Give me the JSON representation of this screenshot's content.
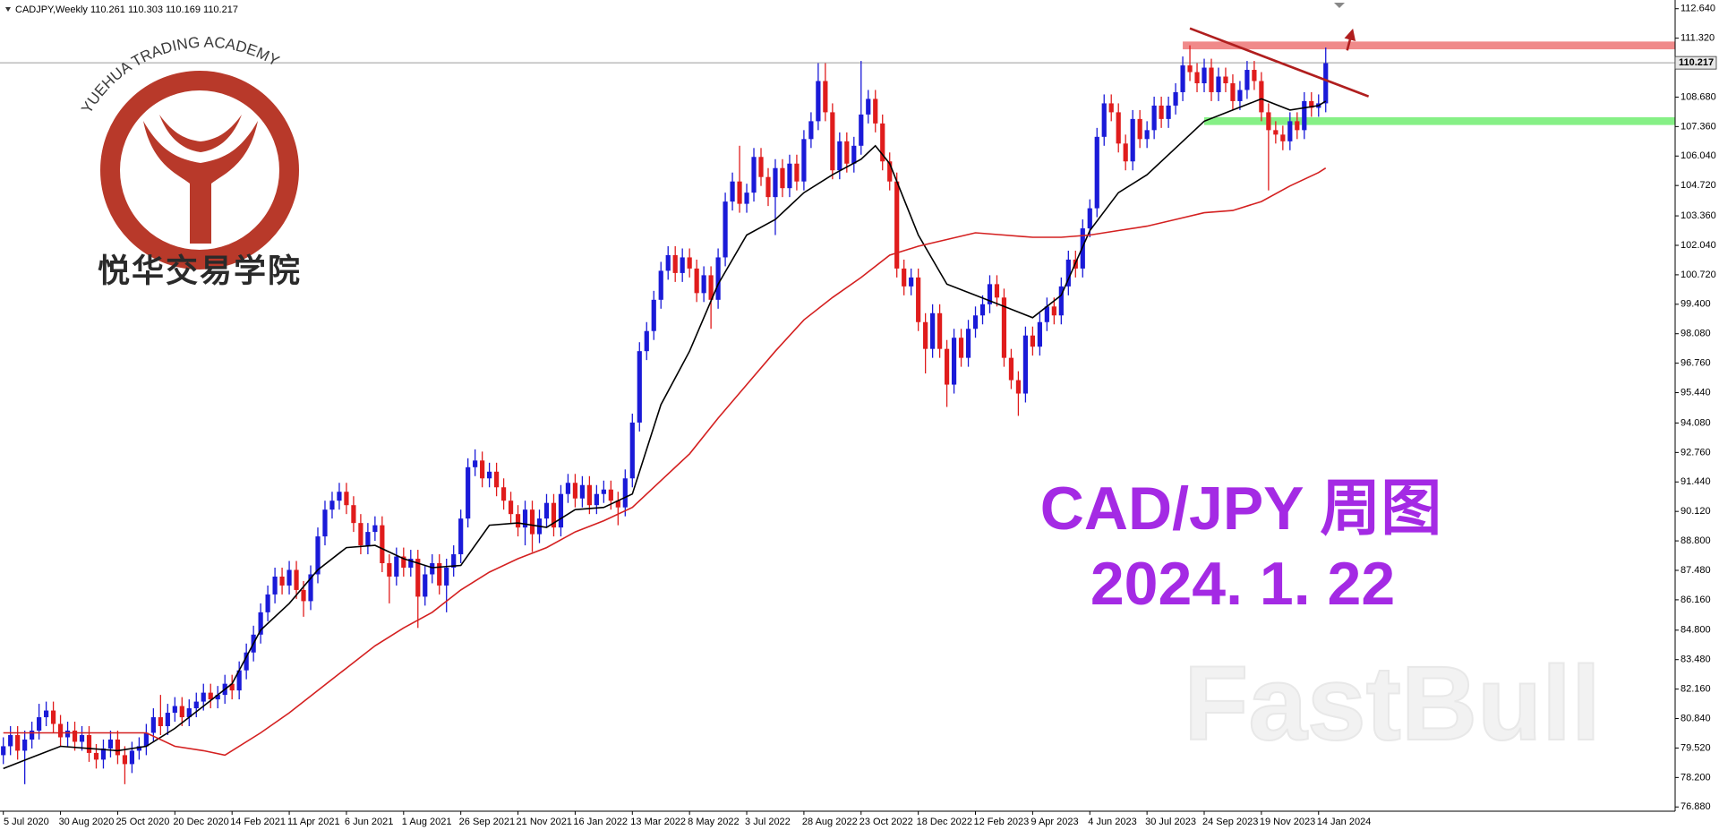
{
  "chart_data": {
    "type": "candlestick",
    "title": "CADJPY,Weekly",
    "ohlc": [
      110.261,
      110.303,
      110.169,
      110.217
    ],
    "up_color": "#1a1ad8",
    "down_color": "#e01c1c",
    "grid": false,
    "ylim": [
      76.69,
      113.03
    ],
    "yticks": [
      {
        "value": 112.64,
        "label": "112.640"
      },
      {
        "value": 111.32,
        "label": "111.320"
      },
      {
        "value": 108.68,
        "label": "108.680"
      },
      {
        "value": 107.36,
        "label": "107.360"
      },
      {
        "value": 106.04,
        "label": "106.040"
      },
      {
        "value": 104.72,
        "label": "104.720"
      },
      {
        "value": 103.36,
        "label": "103.360"
      },
      {
        "value": 102.04,
        "label": "102.040"
      },
      {
        "value": 100.72,
        "label": "100.720"
      },
      {
        "value": 99.4,
        "label": "99.400"
      },
      {
        "value": 98.08,
        "label": "98.080"
      },
      {
        "value": 96.76,
        "label": "96.760"
      },
      {
        "value": 95.44,
        "label": "95.440"
      },
      {
        "value": 94.08,
        "label": "94.080"
      },
      {
        "value": 92.76,
        "label": "92.760"
      },
      {
        "value": 91.44,
        "label": "91.440"
      },
      {
        "value": 90.12,
        "label": "90.120"
      },
      {
        "value": 88.8,
        "label": "88.800"
      },
      {
        "value": 87.48,
        "label": "87.480"
      },
      {
        "value": 86.16,
        "label": "86.160"
      },
      {
        "value": 84.8,
        "label": "84.800"
      },
      {
        "value": 83.48,
        "label": "83.480"
      },
      {
        "value": 82.16,
        "label": "82.160"
      },
      {
        "value": 80.84,
        "label": "80.840"
      },
      {
        "value": 79.52,
        "label": "79.520"
      },
      {
        "value": 78.2,
        "label": "78.200"
      },
      {
        "value": 76.88,
        "label": "76.880"
      }
    ],
    "categories": [
      "5 Jul 2020",
      null,
      null,
      null,
      null,
      null,
      null,
      null,
      "30 Aug 2020",
      null,
      null,
      null,
      null,
      null,
      null,
      null,
      "25 Oct 2020",
      null,
      null,
      null,
      null,
      null,
      null,
      null,
      "20 Dec 2020",
      null,
      null,
      null,
      null,
      null,
      null,
      null,
      "14 Feb 2021",
      null,
      null,
      null,
      null,
      null,
      null,
      null,
      "11 Apr 2021",
      null,
      null,
      null,
      null,
      null,
      null,
      null,
      "6 Jun 2021",
      null,
      null,
      null,
      null,
      null,
      null,
      null,
      "1 Aug 2021",
      null,
      null,
      null,
      null,
      null,
      null,
      null,
      "26 Sep 2021",
      null,
      null,
      null,
      null,
      null,
      null,
      null,
      "21 Nov 2021",
      null,
      null,
      null,
      null,
      null,
      null,
      null,
      "16 Jan 2022",
      null,
      null,
      null,
      null,
      null,
      null,
      null,
      "13 Mar 2022",
      null,
      null,
      null,
      null,
      null,
      null,
      null,
      "8 May 2022",
      null,
      null,
      null,
      null,
      null,
      null,
      null,
      "3 Jul 2022",
      null,
      null,
      null,
      null,
      null,
      null,
      null,
      "28 Aug 2022",
      null,
      null,
      null,
      null,
      null,
      null,
      null,
      "23 Oct 2022",
      null,
      null,
      null,
      null,
      null,
      null,
      null,
      "18 Dec 2022",
      null,
      null,
      null,
      null,
      null,
      null,
      null,
      "12 Feb 2023",
      null,
      null,
      null,
      null,
      null,
      null,
      null,
      "9 Apr 2023",
      null,
      null,
      null,
      null,
      null,
      null,
      null,
      "4 Jun 2023",
      null,
      null,
      null,
      null,
      null,
      null,
      null,
      "30 Jul 2023",
      null,
      null,
      null,
      null,
      null,
      null,
      null,
      "24 Sep 2023",
      null,
      null,
      null,
      null,
      null,
      null,
      null,
      "19 Nov 2023",
      null,
      null,
      null,
      null,
      null,
      null,
      null,
      "14 Jan 2024",
      null
    ],
    "open": [
      79.2,
      79.6,
      80.1,
      79.4,
      79.9,
      80.3,
      80.9,
      81.2,
      80.6,
      80.0,
      80.3,
      79.8,
      80.1,
      79.3,
      79.0,
      79.5,
      79.9,
      79.2,
      78.8,
      79.4,
      79.6,
      80.2,
      80.9,
      80.5,
      81.1,
      81.4,
      80.9,
      81.3,
      81.6,
      82.0,
      81.7,
      81.9,
      82.4,
      82.1,
      83.0,
      83.8,
      84.6,
      85.6,
      86.4,
      87.2,
      86.8,
      87.5,
      86.6,
      86.1,
      87.3,
      89.0,
      90.2,
      90.6,
      91.0,
      90.4,
      89.6,
      88.6,
      89.2,
      89.5,
      87.8,
      87.2,
      88.1,
      87.6,
      88.0,
      86.3,
      87.3,
      87.8,
      86.8,
      87.6,
      88.2,
      89.8,
      92.1,
      92.4,
      91.6,
      91.9,
      91.2,
      90.6,
      90.0,
      89.4,
      90.2,
      89.1,
      89.8,
      90.5,
      89.4,
      90.9,
      91.4,
      90.7,
      91.3,
      90.4,
      90.9,
      91.1,
      90.6,
      90.3,
      91.6,
      94.1,
      97.3,
      98.2,
      99.6,
      100.9,
      101.6,
      100.8,
      101.5,
      101.0,
      99.9,
      100.7,
      99.6,
      101.5,
      104.0,
      104.9,
      103.9,
      104.4,
      106.0,
      105.1,
      104.2,
      105.5,
      104.6,
      105.7,
      104.9,
      106.8,
      107.6,
      109.4,
      108.0,
      105.4,
      106.7,
      105.7,
      106.5,
      107.9,
      108.6,
      107.5,
      105.8,
      104.9,
      101.0,
      100.2,
      100.6,
      98.6,
      97.4,
      99.0,
      97.4,
      95.8,
      97.9,
      97.0,
      98.3,
      98.9,
      99.4,
      100.3,
      99.7,
      97.0,
      96.0,
      95.4,
      98.0,
      97.5,
      98.6,
      99.3,
      98.9,
      100.2,
      101.4,
      101.0,
      102.8,
      103.7,
      106.9,
      108.4,
      108.0,
      106.6,
      105.8,
      107.7,
      106.8,
      107.2,
      108.3,
      107.7,
      108.3,
      108.9,
      110.1,
      109.8,
      109.3,
      110.0,
      108.9,
      109.6,
      109.3,
      108.5,
      109.0,
      109.9,
      109.4,
      108.0,
      107.2,
      107.0,
      106.7,
      107.6,
      107.2,
      108.5,
      108.2,
      108.4
    ],
    "high": [
      80.0,
      80.5,
      80.5,
      80.3,
      80.7,
      81.5,
      81.6,
      81.6,
      81.0,
      80.7,
      80.7,
      80.5,
      80.5,
      79.7,
      79.9,
      80.3,
      80.3,
      79.6,
      79.8,
      80.0,
      80.6,
      81.3,
      81.9,
      81.5,
      81.8,
      81.8,
      81.7,
      82.0,
      82.4,
      82.4,
      82.3,
      82.8,
      82.8,
      83.4,
      84.2,
      85.0,
      86.0,
      86.8,
      87.6,
      87.6,
      87.9,
      87.9,
      87.0,
      87.7,
      89.4,
      90.6,
      91.0,
      91.4,
      91.4,
      90.8,
      90.0,
      89.6,
      89.9,
      89.9,
      88.2,
      88.5,
      88.5,
      88.4,
      88.4,
      87.7,
      88.2,
      88.2,
      88.0,
      88.6,
      90.2,
      92.5,
      92.9,
      92.8,
      92.3,
      92.3,
      91.6,
      91.0,
      90.4,
      90.6,
      90.6,
      90.2,
      90.9,
      90.9,
      91.3,
      91.8,
      91.8,
      91.7,
      91.7,
      91.3,
      91.5,
      91.5,
      91.0,
      92.0,
      94.5,
      97.7,
      98.6,
      100.0,
      101.3,
      102.0,
      102.0,
      101.9,
      101.9,
      101.4,
      101.1,
      101.1,
      101.9,
      104.4,
      105.3,
      106.5,
      104.8,
      106.4,
      106.4,
      105.5,
      105.9,
      105.9,
      106.1,
      106.1,
      107.2,
      108.0,
      110.2,
      110.2,
      108.4,
      107.1,
      107.1,
      106.9,
      110.3,
      109.0,
      109.0,
      107.9,
      106.2,
      105.3,
      101.4,
      101.0,
      101.0,
      99.0,
      99.4,
      99.4,
      97.8,
      98.3,
      98.3,
      98.7,
      99.3,
      99.8,
      100.7,
      100.7,
      100.1,
      97.4,
      96.4,
      98.4,
      98.4,
      99.0,
      99.7,
      99.7,
      100.6,
      101.8,
      101.8,
      103.2,
      104.1,
      107.3,
      108.8,
      108.8,
      108.4,
      107.0,
      108.1,
      108.1,
      107.6,
      108.7,
      108.7,
      108.7,
      109.3,
      110.5,
      111.0,
      110.2,
      110.4,
      110.4,
      110.0,
      110.0,
      109.7,
      109.4,
      110.3,
      110.3,
      109.8,
      108.4,
      107.6,
      107.4,
      108.0,
      108.0,
      108.9,
      108.9,
      108.8,
      110.9
    ],
    "low": [
      78.8,
      79.2,
      79.0,
      77.9,
      79.5,
      79.9,
      80.5,
      80.2,
      79.6,
      79.6,
      79.4,
      79.4,
      78.9,
      78.6,
      78.6,
      79.1,
      78.8,
      77.9,
      78.4,
      79.0,
      79.2,
      79.8,
      80.1,
      80.1,
      80.7,
      80.5,
      80.5,
      80.9,
      81.2,
      81.3,
      81.3,
      81.5,
      81.7,
      81.7,
      82.6,
      83.4,
      84.2,
      85.2,
      86.0,
      86.4,
      86.4,
      86.2,
      85.4,
      85.7,
      86.9,
      88.6,
      89.8,
      90.2,
      90.0,
      89.2,
      88.2,
      88.2,
      88.8,
      87.4,
      86.0,
      86.8,
      87.2,
      87.2,
      84.9,
      85.9,
      86.9,
      86.4,
      85.6,
      87.2,
      87.8,
      89.4,
      91.7,
      91.2,
      91.2,
      90.8,
      90.2,
      89.6,
      89.0,
      88.6,
      88.3,
      88.7,
      89.4,
      89.0,
      89.0,
      90.5,
      90.3,
      90.3,
      90.0,
      90.0,
      90.5,
      90.2,
      89.5,
      89.9,
      91.2,
      93.7,
      96.9,
      97.8,
      99.2,
      100.5,
      100.4,
      100.4,
      100.6,
      99.5,
      99.5,
      98.3,
      99.2,
      101.1,
      103.6,
      103.5,
      103.5,
      104.0,
      104.7,
      103.8,
      102.5,
      104.2,
      104.2,
      104.5,
      104.5,
      106.4,
      107.2,
      107.6,
      105.0,
      105.0,
      105.3,
      105.3,
      106.1,
      107.5,
      107.1,
      105.4,
      104.5,
      100.6,
      99.8,
      99.8,
      98.2,
      96.3,
      97.0,
      97.0,
      94.8,
      95.4,
      96.6,
      96.6,
      97.9,
      98.5,
      99.0,
      99.3,
      96.6,
      95.6,
      94.4,
      95.0,
      97.1,
      97.1,
      98.2,
      98.5,
      98.5,
      99.8,
      100.6,
      100.6,
      102.4,
      103.3,
      106.5,
      107.6,
      106.2,
      105.4,
      105.4,
      106.4,
      106.4,
      106.8,
      107.3,
      107.3,
      107.9,
      108.5,
      109.4,
      108.9,
      108.9,
      108.5,
      108.5,
      108.9,
      108.1,
      108.1,
      108.6,
      109.0,
      107.6,
      104.5,
      106.6,
      106.3,
      106.3,
      106.8,
      106.8,
      107.8,
      107.8,
      108.0
    ],
    "close": [
      79.6,
      80.1,
      79.4,
      79.9,
      80.3,
      80.9,
      81.2,
      80.6,
      80.0,
      80.3,
      79.8,
      80.1,
      79.3,
      79.0,
      79.5,
      79.9,
      79.2,
      78.8,
      79.4,
      79.6,
      80.2,
      80.9,
      80.5,
      81.1,
      81.4,
      80.9,
      81.3,
      81.6,
      82.0,
      81.7,
      81.9,
      82.4,
      82.1,
      83.0,
      83.8,
      84.6,
      85.6,
      86.4,
      87.2,
      86.8,
      87.5,
      86.6,
      86.1,
      87.3,
      89.0,
      90.2,
      90.6,
      91.0,
      90.4,
      89.6,
      88.6,
      89.2,
      89.5,
      87.8,
      87.2,
      88.1,
      87.6,
      88.0,
      86.3,
      87.3,
      87.8,
      86.8,
      87.6,
      88.2,
      89.8,
      92.1,
      92.4,
      91.6,
      91.9,
      91.2,
      90.6,
      90.0,
      89.4,
      90.2,
      89.1,
      89.8,
      90.5,
      89.4,
      90.9,
      91.4,
      90.7,
      91.3,
      90.4,
      90.9,
      91.1,
      90.6,
      90.3,
      91.6,
      94.1,
      97.3,
      98.2,
      99.6,
      100.9,
      101.6,
      100.8,
      101.5,
      101.0,
      99.9,
      100.7,
      99.6,
      101.5,
      104.0,
      104.9,
      103.9,
      104.4,
      106.0,
      105.1,
      104.2,
      105.5,
      104.6,
      105.7,
      104.9,
      106.8,
      107.6,
      109.4,
      108.0,
      105.4,
      106.7,
      105.7,
      106.5,
      107.9,
      108.6,
      107.5,
      105.8,
      104.9,
      101.0,
      100.2,
      100.6,
      98.6,
      97.4,
      99.0,
      97.4,
      95.8,
      97.9,
      97.0,
      98.3,
      98.9,
      99.4,
      100.3,
      99.7,
      97.0,
      96.0,
      95.4,
      98.0,
      97.5,
      98.6,
      99.3,
      98.9,
      100.2,
      101.4,
      101.0,
      102.8,
      103.7,
      106.9,
      108.4,
      108.0,
      106.6,
      105.8,
      107.7,
      106.8,
      107.2,
      108.3,
      107.7,
      108.3,
      108.9,
      110.1,
      109.8,
      109.3,
      110.0,
      108.9,
      109.6,
      109.3,
      108.5,
      109.0,
      109.9,
      109.4,
      108.0,
      107.2,
      107.0,
      106.7,
      107.6,
      107.2,
      108.5,
      108.2,
      108.4,
      110.2
    ],
    "overlays": [
      {
        "color": "#000000",
        "x": [
          0,
          4,
          8,
          12,
          16,
          20,
          24,
          28,
          32,
          36,
          40,
          44,
          48,
          52,
          56,
          60,
          64,
          68,
          72,
          76,
          80,
          84,
          88,
          92,
          96,
          100,
          104,
          108,
          112,
          116,
          120,
          122,
          124,
          128,
          132,
          136,
          140,
          144,
          148,
          152,
          156,
          160,
          164,
          168,
          172,
          176,
          180,
          184,
          185
        ],
        "values": [
          78.6,
          79.1,
          79.6,
          79.5,
          79.4,
          79.6,
          80.4,
          81.4,
          82.4,
          84.8,
          86.0,
          87.5,
          88.5,
          88.6,
          88.0,
          87.6,
          87.7,
          89.5,
          89.6,
          89.4,
          90.2,
          90.3,
          90.9,
          94.9,
          97.3,
          100.3,
          102.5,
          103.2,
          104.4,
          105.2,
          105.9,
          106.5,
          105.7,
          102.5,
          100.3,
          99.8,
          99.3,
          98.8,
          99.8,
          102.7,
          104.4,
          105.2,
          106.4,
          107.6,
          108.1,
          108.6,
          108.1,
          108.3,
          108.5
        ]
      },
      {
        "color": "#d42020",
        "x": [
          0,
          20,
          24,
          28,
          31,
          36,
          40,
          44,
          48,
          52,
          56,
          60,
          64,
          68,
          72,
          76,
          80,
          84,
          88,
          92,
          96,
          100,
          104,
          108,
          112,
          116,
          120,
          124,
          128,
          132,
          136,
          140,
          144,
          148,
          152,
          156,
          160,
          164,
          168,
          172,
          176,
          180,
          184,
          185
        ],
        "values": [
          80.2,
          80.2,
          79.6,
          79.4,
          79.2,
          80.2,
          81.1,
          82.1,
          83.1,
          84.1,
          84.9,
          85.6,
          86.6,
          87.4,
          88.0,
          88.5,
          89.2,
          89.7,
          90.3,
          91.5,
          92.7,
          94.3,
          95.8,
          97.3,
          98.7,
          99.7,
          100.6,
          101.6,
          102.0,
          102.3,
          102.6,
          102.5,
          102.4,
          102.4,
          102.5,
          102.7,
          102.9,
          103.2,
          103.5,
          103.6,
          104.0,
          104.7,
          105.3,
          105.5
        ]
      }
    ],
    "bands": [
      {
        "color": "#f08a8a",
        "from": 165,
        "low": 110.82,
        "high": 111.17
      },
      {
        "color": "#86f086",
        "from": 168,
        "low": 107.43,
        "high": 107.78
      }
    ],
    "trendline": {
      "color": "#b01e1e",
      "x": [
        166,
        191
      ],
      "y": [
        111.76,
        108.71
      ]
    },
    "arrow": {
      "color": "#b01e1e",
      "x": [
        188,
        188.6
      ],
      "y": [
        110.77,
        111.5
      ]
    }
  },
  "logo": {
    "arc_text": "YUEHUA TRADING ACADEMY",
    "name": "悦华交易学院"
  },
  "caption": {
    "title": "CAD/JPY 周图",
    "date": "2024. 1. 22"
  },
  "watermark": "FastBull"
}
